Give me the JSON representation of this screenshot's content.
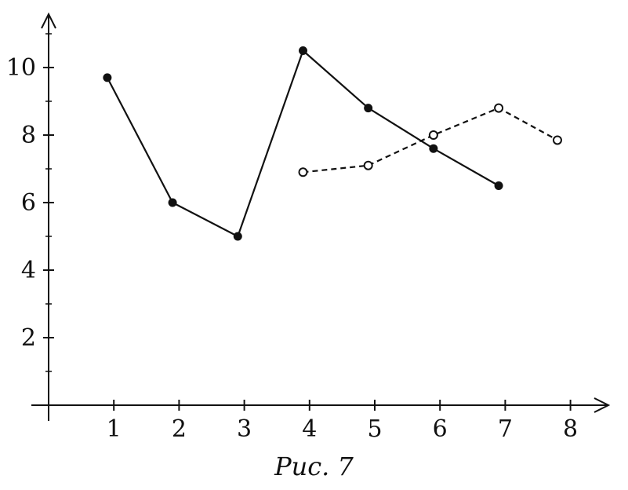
{
  "figure": {
    "caption": "Рис. 7"
  },
  "chart_data": {
    "type": "line",
    "title": "",
    "xlabel": "",
    "ylabel": "",
    "xlim": [
      0,
      8.6
    ],
    "ylim": [
      0,
      11.4
    ],
    "x_ticks": [
      1,
      2,
      3,
      4,
      5,
      6,
      7,
      8
    ],
    "x_tick_labels": [
      "1",
      "2",
      "3",
      "4",
      "5",
      "6",
      "7",
      "8"
    ],
    "y_ticks": [
      2,
      4,
      6,
      8,
      10
    ],
    "y_tick_labels": [
      "2",
      "4",
      "6",
      "8",
      "10"
    ],
    "y_minor_ticks": [
      1,
      3,
      5,
      7,
      9,
      11
    ],
    "grid": false,
    "series": [
      {
        "style": "solid",
        "marker": "filled-circle",
        "color": "#111111",
        "x": [
          0.9,
          1.9,
          2.9,
          3.9,
          4.9,
          5.9,
          6.9
        ],
        "y": [
          9.7,
          6.0,
          5.0,
          10.5,
          8.8,
          7.6,
          6.5
        ]
      },
      {
        "style": "dashed",
        "marker": "open-circle",
        "color": "#111111",
        "x": [
          3.9,
          4.9,
          5.9,
          6.9,
          7.8
        ],
        "y": [
          6.9,
          7.1,
          8.0,
          8.8,
          7.85
        ]
      }
    ]
  }
}
